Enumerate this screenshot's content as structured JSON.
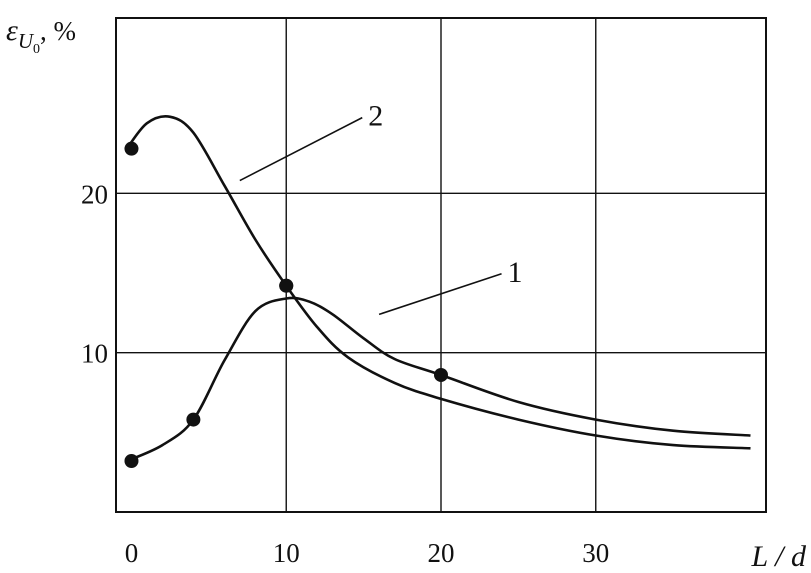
{
  "chart_data": {
    "type": "line",
    "xlabel": "L / d",
    "ylabel": {
      "symbol": "ε",
      "subscript": "U",
      "subsubscript": "0",
      "unit": ", %"
    },
    "xlim": [
      -1,
      41
    ],
    "ylim": [
      0,
      31
    ],
    "xticks": [
      0,
      10,
      20,
      30
    ],
    "yticks": [
      10,
      20
    ],
    "grid": true,
    "series": [
      {
        "name": "1",
        "color": "#111111",
        "markers": [
          {
            "x": 0,
            "y": 3.2
          },
          {
            "x": 4,
            "y": 5.8
          },
          {
            "x": 10,
            "y": 14.2
          },
          {
            "x": 20,
            "y": 8.6
          }
        ],
        "curve": [
          {
            "x": -0.3,
            "y": 3.2
          },
          {
            "x": 2,
            "y": 4.2
          },
          {
            "x": 4,
            "y": 5.8
          },
          {
            "x": 6,
            "y": 9.5
          },
          {
            "x": 8,
            "y": 12.6
          },
          {
            "x": 10,
            "y": 13.4
          },
          {
            "x": 11.5,
            "y": 13.2
          },
          {
            "x": 13,
            "y": 12.4
          },
          {
            "x": 15,
            "y": 10.9
          },
          {
            "x": 17,
            "y": 9.6
          },
          {
            "x": 20,
            "y": 8.6
          },
          {
            "x": 25,
            "y": 6.9
          },
          {
            "x": 30,
            "y": 5.8
          },
          {
            "x": 35,
            "y": 5.1
          },
          {
            "x": 40,
            "y": 4.8
          }
        ],
        "label_anchor": {
          "x": 16,
          "y": 12.4
        },
        "label_pos": {
          "x": 24.3,
          "y": 15.2
        }
      },
      {
        "name": "2",
        "color": "#111111",
        "markers": [
          {
            "x": 0,
            "y": 22.8
          },
          {
            "x": 10,
            "y": 14.2
          }
        ],
        "curve": [
          {
            "x": -0.3,
            "y": 22.8
          },
          {
            "x": 1,
            "y": 24.4
          },
          {
            "x": 2.5,
            "y": 24.8
          },
          {
            "x": 4,
            "y": 23.8
          },
          {
            "x": 6,
            "y": 20.5
          },
          {
            "x": 8,
            "y": 17.1
          },
          {
            "x": 10,
            "y": 14.2
          },
          {
            "x": 12,
            "y": 11.6
          },
          {
            "x": 14,
            "y": 9.7
          },
          {
            "x": 17,
            "y": 8.1
          },
          {
            "x": 20,
            "y": 7.1
          },
          {
            "x": 25,
            "y": 5.8
          },
          {
            "x": 30,
            "y": 4.8
          },
          {
            "x": 35,
            "y": 4.2
          },
          {
            "x": 40,
            "y": 4.0
          }
        ],
        "label_anchor": {
          "x": 7,
          "y": 20.8
        },
        "label_pos": {
          "x": 15.3,
          "y": 25.0
        }
      }
    ]
  }
}
